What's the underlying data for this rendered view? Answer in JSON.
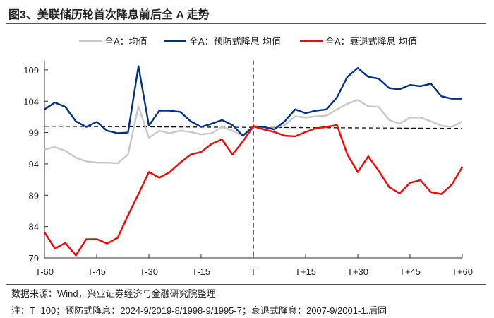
{
  "title": "图3、美联储历轮首次降息前后全 A 走势",
  "source": "数据来源：Wind，兴业证券经济与金融研究院整理",
  "note": "注：T=100；预防式降息：2024-9/2019-8/1998-9/1995-7；衰退式降息：2007-9/2001-1.后同",
  "chart_data": {
    "type": "line",
    "x": [
      -60,
      -57,
      -54,
      -51,
      -48,
      -45,
      -42,
      -39,
      -36,
      -33,
      -30,
      -27,
      -24,
      -21,
      -18,
      -15,
      -12,
      -9,
      -6,
      -3,
      0,
      3,
      6,
      9,
      12,
      15,
      18,
      21,
      24,
      27,
      30,
      33,
      36,
      39,
      42,
      45,
      48,
      51,
      54,
      57,
      60
    ],
    "xticks": [
      -60,
      -45,
      -30,
      -15,
      0,
      15,
      30,
      45,
      60
    ],
    "xtick_labels": [
      "T-60",
      "T-45",
      "T-30",
      "T-15",
      "T",
      "T+15",
      "T+30",
      "T+45",
      "T+60"
    ],
    "yticks": [
      79,
      84,
      89,
      94,
      99,
      104,
      109
    ],
    "ylim": [
      79,
      110.5
    ],
    "reference_lines": {
      "horizontal": 100,
      "vertical": 0
    },
    "legend_position": "top",
    "series": [
      {
        "name": "全A：均值",
        "color": "#c8c8c8",
        "values": [
          96.3,
          96.7,
          96.1,
          95.0,
          94.4,
          94.2,
          94.2,
          94.1,
          95.5,
          103.2,
          98.2,
          99.3,
          98.9,
          99.3,
          99.1,
          98.7,
          98.9,
          99.9,
          99.3,
          98.5,
          100,
          99.7,
          99.7,
          100.2,
          101.6,
          101.4,
          101.6,
          101.7,
          102.7,
          103.6,
          104.2,
          103.2,
          103.1,
          101.0,
          100.4,
          101.4,
          101.4,
          100.8,
          100.1,
          99.9,
          100.8
        ]
      },
      {
        "name": "全A：预防式降息-均值",
        "color": "#003087",
        "values": [
          102.7,
          103.8,
          103.1,
          100.8,
          99.9,
          100.7,
          99.3,
          98.9,
          99.0,
          109.6,
          100.1,
          102.5,
          102.5,
          102.3,
          100.8,
          99.9,
          100.4,
          101.0,
          100.2,
          98.5,
          100,
          99.9,
          99.5,
          100.8,
          102.7,
          102.1,
          102.5,
          102.7,
          104.6,
          107.9,
          109.3,
          107.9,
          107.6,
          106.1,
          105.9,
          106.6,
          106.4,
          106.8,
          104.8,
          104.4,
          104.4
        ]
      },
      {
        "name": "全A：衰退式降息-均值",
        "color": "#ff0000",
        "values": [
          83.1,
          80.5,
          81.4,
          79.4,
          82.0,
          82.0,
          81.3,
          82.2,
          85.8,
          89.2,
          92.7,
          91.8,
          92.7,
          94.2,
          95.5,
          95.9,
          97.2,
          97.9,
          95.5,
          97.6,
          100,
          99.5,
          99.1,
          98.5,
          98.4,
          99.1,
          99.7,
          99.9,
          100.2,
          95.5,
          92.7,
          95.2,
          92.9,
          90.3,
          89.3,
          91.0,
          91.4,
          89.5,
          89.2,
          90.7,
          93.5
        ]
      }
    ]
  }
}
